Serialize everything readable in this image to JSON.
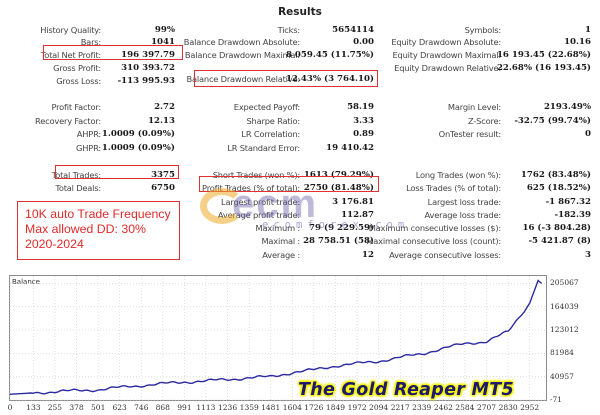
{
  "title": "Results",
  "col1": [
    {
      "label": "History Quality:",
      "value": "99%"
    },
    {
      "label": "Bars:",
      "value": "1041"
    },
    {
      "label": "Total Net Profit:",
      "value": "196 397.79"
    },
    {
      "label": "Gross Profit:",
      "value": "310 393.72"
    },
    {
      "label": "Gross Loss:",
      "value": "-113 995.93"
    },
    {
      "label": "Profit Factor:",
      "value": "2.72"
    },
    {
      "label": "Recovery Factor:",
      "value": "12.13"
    },
    {
      "label": "AHPR:",
      "value": "1.0009 (0.09%)"
    },
    {
      "label": "GHPR:",
      "value": "1.0009 (0.09%)"
    },
    {
      "label": "Total Trades:",
      "value": "3375"
    },
    {
      "label": "Total Deals:",
      "value": "6750"
    }
  ],
  "col2": [
    {
      "label": "Ticks:",
      "value": "5654114"
    },
    {
      "label": "Balance Drawdown Absolute:",
      "value": "0.00"
    },
    {
      "label": "Balance Drawdown Maximal:",
      "value": "8 059.45 (11.75%)"
    },
    {
      "label": "Balance Drawdown Relative:",
      "value": "12.43% (3 764.10)"
    },
    {
      "label": "Expected Payoff:",
      "value": "58.19"
    },
    {
      "label": "Sharpe Ratio:",
      "value": "3.33"
    },
    {
      "label": "LR Correlation:",
      "value": "0.89"
    },
    {
      "label": "LR Standard Error:",
      "value": "19 410.42"
    },
    {
      "label": "Short Trades (won %):",
      "value": "1613 (79.29%)"
    },
    {
      "label": "Profit Trades (% of total):",
      "value": "2750 (81.48%)"
    },
    {
      "label": "Largest profit trade:",
      "value": "3 176.81"
    },
    {
      "label": "Average profit trade:",
      "value": "112.87"
    },
    {
      "label": "Maximum :",
      "value": "79 (9 229.59)"
    },
    {
      "label": "Maximal :",
      "value": "28 758.51 (58)"
    },
    {
      "label": "Average :",
      "value": "12"
    }
  ],
  "col3": [
    {
      "label": "Symbols:",
      "value": "1"
    },
    {
      "label": "Equity Drawdown Absolute:",
      "value": "10.16"
    },
    {
      "label": "Equity Drawdown Maximal:",
      "value": "16 193.45 (22.68%)"
    },
    {
      "label": "Equity Drawdown Relative:",
      "value": "22.68% (16 193.45)"
    },
    {
      "label": "Margin Level:",
      "value": "2193.49%"
    },
    {
      "label": "Z-Score:",
      "value": "-32.75 (99.74%)"
    },
    {
      "label": "OnTester result:",
      "value": "0"
    },
    {
      "label": "Long Trades (won %):",
      "value": "1762 (83.48%)"
    },
    {
      "label": "Loss Trades (% of total):",
      "value": "625 (18.52%)"
    },
    {
      "label": "Largest loss trade:",
      "value": "-1 867.32"
    },
    {
      "label": "Average loss trade:",
      "value": "-182.39"
    },
    {
      "label": "Maximum consecutive losses ($):",
      "value": "16 (-3 804.28)"
    },
    {
      "label": "Maximal consecutive loss (count):",
      "value": "-5 421.87 (8)"
    },
    {
      "label": "Average consecutive losses:",
      "value": "3"
    }
  ],
  "note": {
    "line1": "10K auto Trade Frequency",
    "line2": "Max allowed DD: 30%",
    "line3": "2020-2024"
  },
  "watermark": {
    "big": "ecm",
    "small": "ecomforex.com"
  },
  "brand": "The Gold Reaper MT5",
  "colors": {
    "highlight": "#e03030",
    "line": "#2a2aa0",
    "brand_text": "#1d1a6e",
    "brand_glow": "#f4f100"
  },
  "chart_data": {
    "type": "line",
    "title": "Balance",
    "xlabel": "",
    "ylabel": "",
    "x_ticks": [
      "0",
      "133",
      "255",
      "378",
      "501",
      "623",
      "746",
      "868",
      "991",
      "1113",
      "1236",
      "1359",
      "1481",
      "1604",
      "1726",
      "1849",
      "1972",
      "2094",
      "2217",
      "2339",
      "2462",
      "2584",
      "2707",
      "2830",
      "2952"
    ],
    "y_ticks": [
      "205067",
      "164039",
      "123012",
      "81984",
      "40957",
      "-71"
    ],
    "ylim": [
      -71,
      215000
    ],
    "xlim": [
      0,
      3050
    ],
    "grid": true,
    "series": [
      {
        "name": "Balance",
        "x": [
          0,
          133,
          255,
          378,
          501,
          623,
          746,
          868,
          991,
          1113,
          1236,
          1359,
          1481,
          1604,
          1726,
          1849,
          1972,
          2094,
          2217,
          2339,
          2462,
          2584,
          2707,
          2830,
          2952,
          3000,
          3020
        ],
        "values": [
          10000,
          12500,
          14500,
          16500,
          18000,
          22000,
          25500,
          28500,
          31500,
          33500,
          36000,
          39000,
          41000,
          48000,
          53000,
          60000,
          64000,
          68000,
          75000,
          81000,
          91000,
          99000,
          103000,
          120000,
          170000,
          210000,
          205000
        ]
      }
    ]
  }
}
